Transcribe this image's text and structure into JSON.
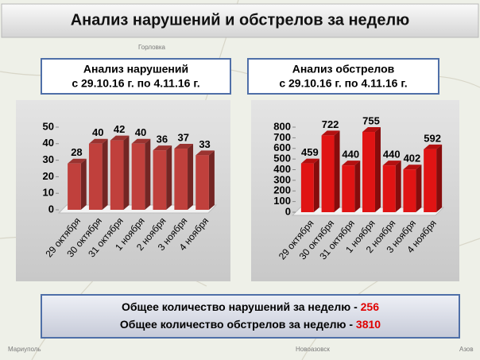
{
  "header": {
    "title": "Анализ нарушений и обстрелов за неделю"
  },
  "map": {
    "labels": [
      "Горловка",
      "Мариуполь",
      "Новоазовск",
      "Азов"
    ]
  },
  "chart_data": [
    {
      "type": "bar",
      "title": "Анализ нарушений",
      "subtitle": "с 29.10.16 г. по 4.11.16 г.",
      "categories": [
        "29 октября",
        "30 октября",
        "31 октября",
        "1 ноября",
        "2 ноября",
        "3 ноября",
        "4 ноября"
      ],
      "values": [
        28,
        40,
        42,
        40,
        36,
        37,
        33
      ],
      "color": "#c0403c",
      "ylim": [
        0,
        50
      ],
      "yticks": [
        0,
        10,
        20,
        30,
        40,
        50
      ]
    },
    {
      "type": "bar",
      "title": "Анализ обстрелов",
      "subtitle": "с 29.10.16 г. по 4.11.16 г.",
      "categories": [
        "29 октября",
        "30 октября",
        "31 октября",
        "1 ноября",
        "2 ноября",
        "3 ноября",
        "4 ноября"
      ],
      "values": [
        459,
        722,
        440,
        755,
        440,
        402,
        592
      ],
      "color": "#e01414",
      "ylim": [
        0,
        800
      ],
      "yticks": [
        0,
        100,
        200,
        300,
        400,
        500,
        600,
        700,
        800
      ]
    }
  ],
  "summary": {
    "lines": [
      {
        "text": "Общее количество нарушений за неделю - ",
        "value": 256
      },
      {
        "text": "Общее количество обстрелов за неделю - ",
        "value": 3810
      }
    ]
  }
}
